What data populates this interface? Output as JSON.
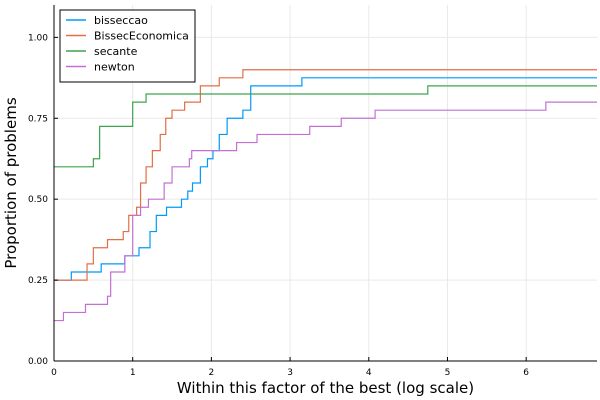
{
  "chart_data": {
    "type": "line",
    "step": true,
    "xlabel": "Within this factor of the best (log scale)",
    "ylabel": "Proportion of problems",
    "xlim": [
      0,
      6.9
    ],
    "ylim": [
      0,
      1.1
    ],
    "xticks": [
      0,
      1,
      2,
      3,
      4,
      5,
      6
    ],
    "xtick_labels": [
      "0",
      "1",
      "2",
      "3",
      "4",
      "5",
      "6"
    ],
    "yticks": [
      0,
      0.25,
      0.5,
      0.75,
      1.0
    ],
    "ytick_labels": [
      "0.00",
      "0.25",
      "0.50",
      "0.75",
      "1.00"
    ],
    "grid": true,
    "legend_position": "top-left",
    "series": [
      {
        "name": "bisseccao",
        "color": "#009af9",
        "x": [
          0,
          0.22,
          0.6,
          0.9,
          1.08,
          1.22,
          1.3,
          1.43,
          1.62,
          1.7,
          1.76,
          1.86,
          1.95,
          2.02,
          2.1,
          2.2,
          2.4,
          2.5,
          3.15,
          6.9
        ],
        "y": [
          0.25,
          0.275,
          0.3,
          0.325,
          0.35,
          0.4,
          0.45,
          0.475,
          0.5,
          0.525,
          0.55,
          0.6,
          0.625,
          0.65,
          0.7,
          0.75,
          0.775,
          0.85,
          0.875,
          0.875
        ]
      },
      {
        "name": "BissecEconomica",
        "color": "#e26f46",
        "x": [
          0,
          0.42,
          0.5,
          0.68,
          0.88,
          0.95,
          1.05,
          1.1,
          1.17,
          1.25,
          1.35,
          1.42,
          1.5,
          1.66,
          1.86,
          2.1,
          2.4,
          6.9
        ],
        "y": [
          0.25,
          0.3,
          0.35,
          0.375,
          0.4,
          0.45,
          0.475,
          0.55,
          0.6,
          0.65,
          0.7,
          0.75,
          0.775,
          0.8,
          0.85,
          0.875,
          0.9,
          0.9
        ]
      },
      {
        "name": "secante",
        "color": "#3da44d",
        "x": [
          0,
          0.5,
          0.58,
          1.0,
          1.17,
          4.75,
          6.9
        ],
        "y": [
          0.6,
          0.625,
          0.725,
          0.8,
          0.825,
          0.85,
          0.85
        ]
      },
      {
        "name": "newton",
        "color": "#c271d2",
        "x": [
          0,
          0.12,
          0.4,
          0.68,
          0.72,
          0.9,
          1.0,
          1.1,
          1.2,
          1.4,
          1.5,
          1.72,
          1.75,
          1.97,
          2.32,
          2.58,
          3.25,
          3.65,
          4.08,
          6.25,
          6.9
        ],
        "y": [
          0.125,
          0.15,
          0.175,
          0.2,
          0.275,
          0.325,
          0.45,
          0.475,
          0.5,
          0.55,
          0.6,
          0.625,
          0.65,
          0.65,
          0.675,
          0.7,
          0.725,
          0.75,
          0.775,
          0.8,
          0.8
        ]
      }
    ]
  }
}
